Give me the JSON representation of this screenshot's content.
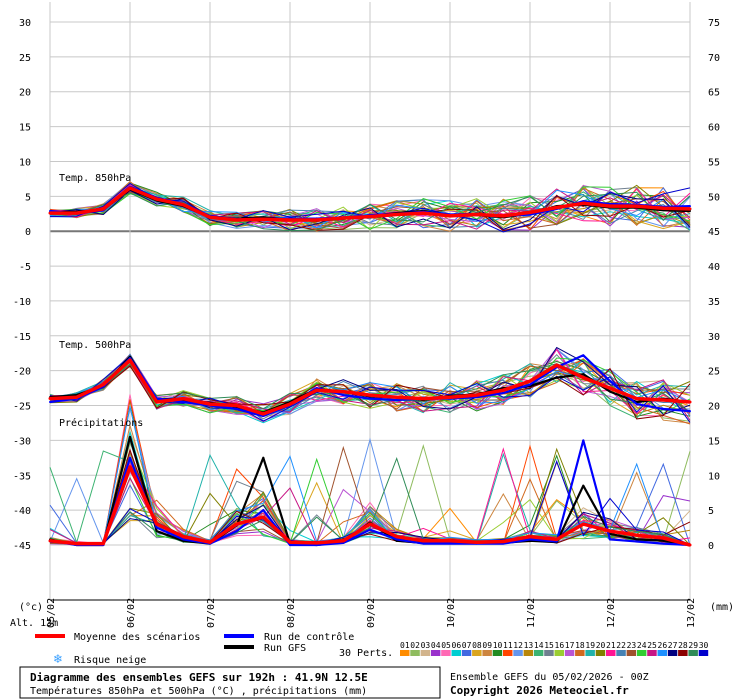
{
  "chart_data": {
    "type": "line",
    "x_dates": [
      "05/02",
      "06/02",
      "07/02",
      "08/02",
      "09/02",
      "10/02",
      "11/02",
      "12/02",
      "13/02"
    ],
    "temp_axis": {
      "label": "(°c)",
      "ticks": [
        30,
        25,
        20,
        15,
        10,
        5,
        0,
        -5,
        -10,
        -15,
        -20,
        -25,
        -30,
        -35,
        -40,
        -45
      ],
      "ylim": [
        -45,
        30
      ]
    },
    "precip_axis": {
      "label": "(mm)",
      "ticks": [
        75,
        70,
        65,
        60,
        55,
        50,
        45,
        40,
        35,
        30,
        25,
        20,
        15,
        10,
        5,
        0
      ],
      "ylim": [
        0,
        75
      ]
    },
    "grid": true,
    "panel_labels": {
      "t850": "Temp. 850hPa",
      "t500": "Temp. 500hPa",
      "precip": "Précipitations"
    },
    "altitude": "Alt. 13m",
    "series": [
      {
        "name": "Moyenne des scénarios",
        "color": "#ff0000",
        "t850": [
          2.6,
          2.6,
          3.2,
          6.2,
          4.6,
          3.8,
          2.0,
          1.6,
          1.7,
          1.6,
          1.6,
          1.9,
          2.1,
          2.4,
          2.6,
          2.2,
          2.4,
          2.2,
          2.7,
          3.4,
          4.0,
          3.6,
          3.6,
          3.3,
          3.2
        ],
        "t500": [
          -24.0,
          -23.8,
          -22.0,
          -18.5,
          -24.5,
          -24.0,
          -24.8,
          -25.0,
          -26.2,
          -24.8,
          -22.8,
          -23.0,
          -23.5,
          -23.8,
          -24.0,
          -23.8,
          -23.5,
          -22.8,
          -21.5,
          -19.2,
          -21.0,
          -22.5,
          -24.0,
          -24.2,
          -24.5
        ],
        "precip": [
          0.6,
          0.2,
          0.2,
          11.2,
          3.0,
          1.2,
          0.4,
          3.0,
          4.0,
          0.4,
          0.3,
          0.6,
          3.0,
          1.2,
          0.6,
          0.6,
          0.4,
          0.5,
          1.2,
          0.8,
          3.0,
          2.0,
          1.4,
          1.0,
          0.0
        ]
      },
      {
        "name": "Run de contrôle",
        "color": "#0000ff",
        "t850": [
          2.9,
          2.5,
          3.0,
          6.4,
          4.8,
          3.9,
          2.2,
          1.7,
          1.8,
          1.8,
          1.8,
          2.0,
          2.3,
          2.5,
          2.8,
          2.4,
          2.5,
          2.2,
          2.4,
          3.2,
          4.3,
          3.9,
          3.8,
          3.5,
          3.6
        ],
        "t500": [
          -24.5,
          -24.0,
          -22.3,
          -18.2,
          -24.0,
          -24.5,
          -25.0,
          -25.5,
          -26.5,
          -25.0,
          -22.5,
          -23.5,
          -24.0,
          -24.2,
          -24.0,
          -24.0,
          -23.8,
          -23.2,
          -22.0,
          -19.5,
          -17.8,
          -21.5,
          -24.8,
          -25.5,
          -25.8
        ],
        "precip": [
          0.6,
          0.0,
          0.0,
          12.5,
          2.5,
          0.8,
          0.2,
          2.0,
          5.0,
          0.0,
          0.0,
          0.3,
          2.2,
          0.8,
          0.2,
          0.2,
          0.2,
          0.2,
          0.8,
          0.5,
          15.0,
          0.8,
          0.5,
          0.2,
          0.0
        ]
      },
      {
        "name": "Run GFS",
        "color": "#000000",
        "t850": [
          2.7,
          2.8,
          3.1,
          6.0,
          4.4,
          3.6,
          2.0,
          1.8,
          2.0,
          1.7,
          1.5,
          1.8,
          2.2,
          2.6,
          2.9,
          2.3,
          2.3,
          2.0,
          2.5,
          3.6,
          3.8,
          3.4,
          3.4,
          3.0,
          2.9
        ],
        "t500": [
          -23.8,
          -23.5,
          -22.2,
          -18.0,
          -24.2,
          -24.3,
          -24.6,
          -25.2,
          -26.0,
          -24.5,
          -22.6,
          -23.0,
          -23.7,
          -23.8,
          -24.2,
          -23.6,
          -23.4,
          -22.5,
          -22.2,
          -21.0,
          -20.5,
          -23.0,
          -24.5,
          -24.0,
          -24.5
        ],
        "precip": [
          0.8,
          0.0,
          0.0,
          15.5,
          2.0,
          0.6,
          0.2,
          2.8,
          12.5,
          0.2,
          0.0,
          0.5,
          3.2,
          0.6,
          0.3,
          0.3,
          0.3,
          0.3,
          0.6,
          0.4,
          8.5,
          1.6,
          0.8,
          0.6,
          0.0
        ]
      }
    ],
    "perturbations": {
      "count": 30,
      "labels": [
        "01",
        "02",
        "03",
        "04",
        "05",
        "06",
        "07",
        "08",
        "09",
        "10",
        "11",
        "12",
        "13",
        "14",
        "15",
        "16",
        "17",
        "18",
        "19",
        "20",
        "21",
        "22",
        "23",
        "24",
        "25",
        "26",
        "27",
        "28",
        "29",
        "30"
      ],
      "colors": [
        "#ff8c00",
        "#8fbc5f",
        "#d2b48c",
        "#9932cc",
        "#ff69b4",
        "#00ced1",
        "#4169e1",
        "#daa520",
        "#cd853f",
        "#228b22",
        "#ff4500",
        "#6495ed",
        "#b8860b",
        "#3cb371",
        "#708090",
        "#9acd32",
        "#ba55d3",
        "#d2691e",
        "#20b2aa",
        "#808000",
        "#ff1493",
        "#4682b4",
        "#a0522d",
        "#32cd32",
        "#c71585",
        "#1e90ff",
        "#000080",
        "#8b0000",
        "#2e8b57",
        "#0000cd"
      ]
    },
    "legend": {
      "mean": "Moyenne des scénarios",
      "control": "Run de contrôle",
      "gfs": "Run GFS",
      "snow": "Risque neige",
      "perts": "30 Perts."
    }
  },
  "footer": {
    "title": "Diagramme des ensembles GEFS sur 192h : 41.9N 12.5E",
    "subtitle": "Températures 850hPa et 500hPa (°C) , précipitations (mm)",
    "run": "Ensemble GEFS du 05/02/2026 - 00Z",
    "copyright": "Copyright 2026 Meteociel.fr"
  }
}
